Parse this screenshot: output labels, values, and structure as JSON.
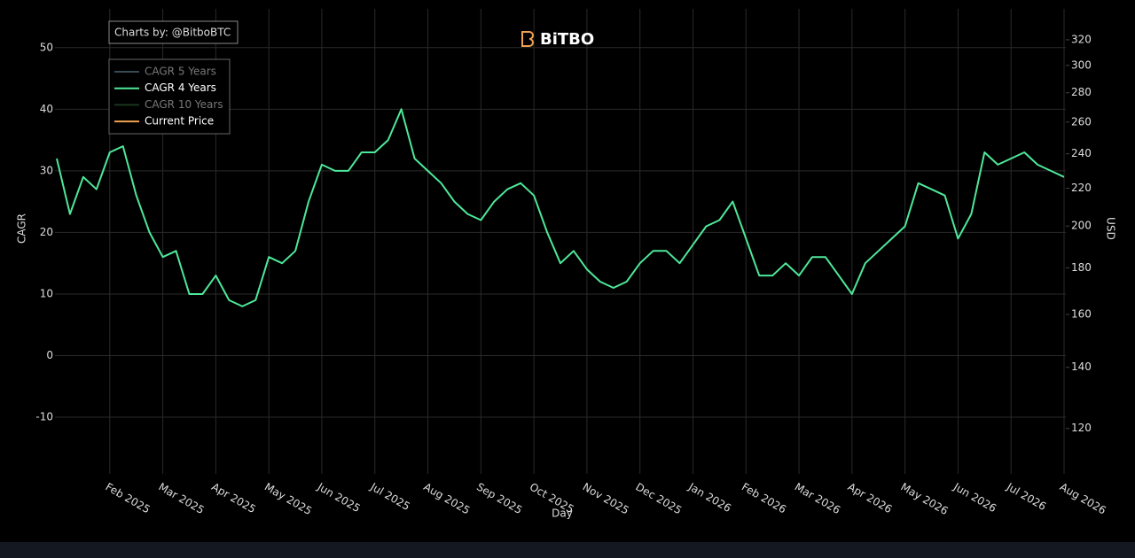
{
  "chart_data": {
    "type": "line",
    "watermark": "Charts by: @BitboBTC",
    "logo": "BiTBO",
    "y_label": "CAGR",
    "y2_label": "USD",
    "x_label": "Day",
    "categories": [
      null,
      null,
      null,
      null,
      "Feb 2025",
      null,
      null,
      null,
      "Mar 2025",
      null,
      null,
      null,
      "Apr 2025",
      null,
      null,
      null,
      "May 2025",
      null,
      null,
      null,
      "Jun 2025",
      null,
      null,
      null,
      "Jul 2025",
      null,
      null,
      null,
      "Aug 2025",
      null,
      null,
      null,
      "Sep 2025",
      null,
      null,
      null,
      "Oct 2025",
      null,
      null,
      null,
      "Nov 2025",
      null,
      null,
      null,
      "Dec 2025",
      null,
      null,
      null,
      "Jan 2026",
      null,
      null,
      null,
      "Feb 2026",
      null,
      null,
      null,
      "Mar 2026",
      null,
      null,
      null,
      "Apr 2026",
      null,
      null,
      null,
      "May 2026",
      null,
      null,
      null,
      "Jun 2026",
      null,
      null,
      null,
      "Jul 2026",
      null,
      null,
      null,
      "Aug 2026"
    ],
    "series": [
      {
        "name": "CAGR 4 Years",
        "color": "#4ee89a",
        "values": [
          32,
          23,
          29,
          27,
          33,
          34,
          26,
          20,
          16,
          17,
          10,
          10,
          13,
          9,
          8,
          9,
          16,
          15,
          17,
          25,
          31,
          30,
          30,
          33,
          33,
          35,
          40,
          32,
          30,
          28,
          25,
          23,
          22,
          25,
          27,
          28,
          26,
          20,
          15,
          17,
          14,
          12,
          11,
          12,
          15,
          17,
          17,
          15,
          18,
          21,
          22,
          25,
          19,
          13,
          13,
          15,
          13,
          16,
          16,
          13,
          10,
          15,
          17,
          19,
          21,
          28,
          27,
          26,
          19,
          23,
          33,
          31,
          32,
          33,
          31,
          30,
          29
        ]
      }
    ],
    "legend": [
      {
        "name": "CAGR 5 Years",
        "color": "#5a7d8c",
        "visible": false
      },
      {
        "name": "CAGR 4 Years",
        "color": "#4ee89a",
        "visible": true
      },
      {
        "name": "CAGR 10 Years",
        "color": "#2f5a2f",
        "visible": false
      },
      {
        "name": "Current Price",
        "color": "#f0a050",
        "visible": true
      }
    ],
    "ylim": [
      -19.2,
      56.3
    ],
    "yticks": [
      -10,
      0,
      10,
      20,
      30,
      40,
      50
    ],
    "y2lim": [
      107,
      346
    ],
    "y2_log": true,
    "y2ticks": [
      120,
      140,
      160,
      180,
      200,
      220,
      240,
      260,
      280,
      300,
      320
    ],
    "grid": true
  }
}
